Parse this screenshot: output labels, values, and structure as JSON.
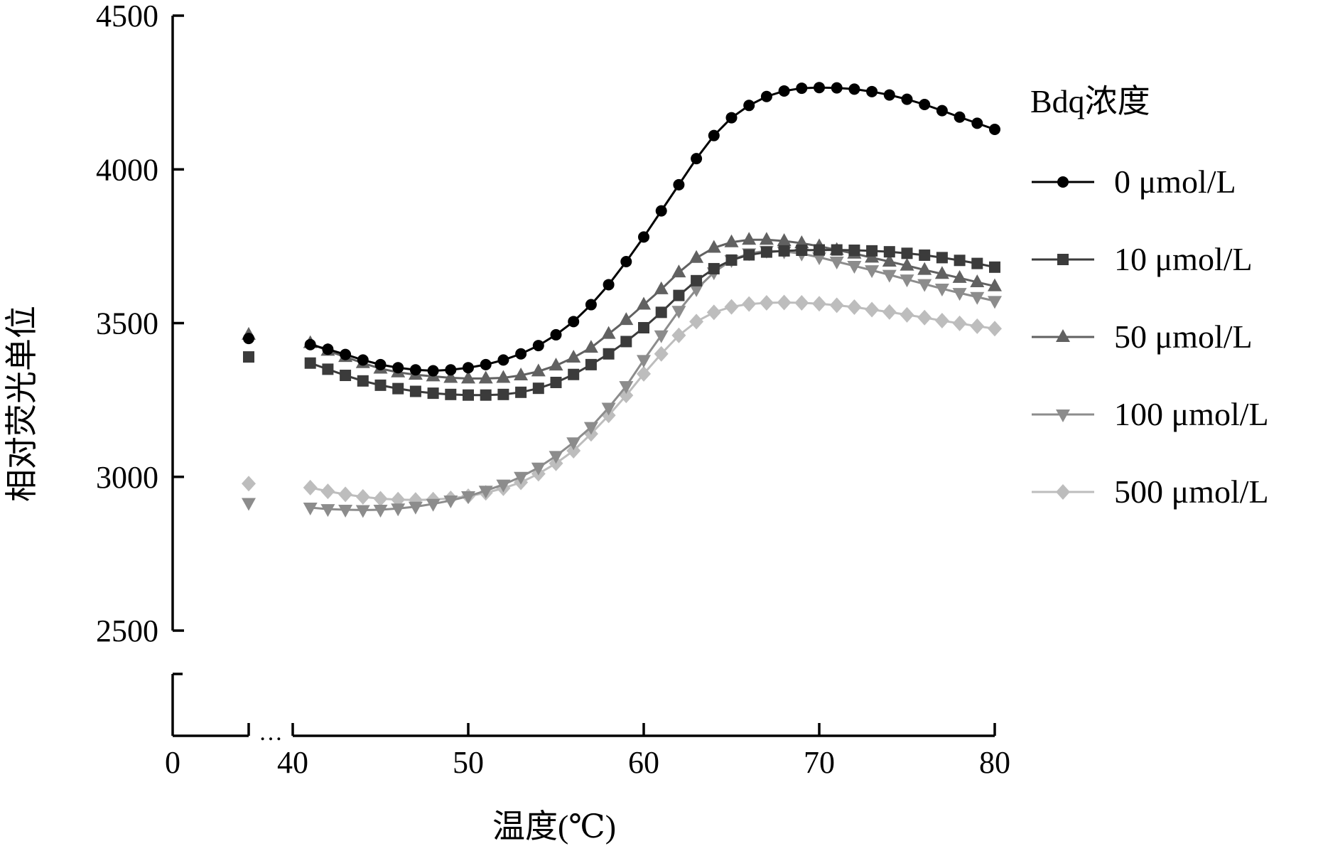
{
  "chart_data": {
    "type": "line",
    "xlabel": "温度(℃)",
    "ylabel": "相对荧光单位",
    "x_ticks": [
      "0",
      "40",
      "50",
      "60",
      "70",
      "80"
    ],
    "y_ticks": [
      "2500",
      "3000",
      "3500",
      "4000",
      "4500"
    ],
    "xlim": [
      41,
      80
    ],
    "ylim": [
      2500,
      4500
    ],
    "x_break_marker": "…",
    "legend": {
      "title": "Bdq浓度",
      "position": "right"
    },
    "series": [
      {
        "name": "0 μmol/L",
        "marker": "circle",
        "color": "#000000",
        "initial_value": 3450,
        "x": [
          41,
          42,
          43,
          44,
          45,
          46,
          47,
          48,
          49,
          50,
          51,
          52,
          53,
          54,
          55,
          56,
          57,
          58,
          59,
          60,
          61,
          62,
          63,
          64,
          65,
          66,
          67,
          68,
          69,
          70,
          71,
          72,
          73,
          74,
          75,
          76,
          77,
          78,
          79,
          80
        ],
        "values": [
          3430,
          3415,
          3398,
          3380,
          3365,
          3355,
          3348,
          3345,
          3348,
          3355,
          3365,
          3380,
          3400,
          3427,
          3462,
          3505,
          3560,
          3625,
          3700,
          3780,
          3865,
          3950,
          4035,
          4110,
          4168,
          4208,
          4237,
          4255,
          4264,
          4266,
          4265,
          4261,
          4253,
          4242,
          4228,
          4211,
          4191,
          4170,
          4150,
          4130
        ]
      },
      {
        "name": "10 μmol/L",
        "marker": "square",
        "color": "#3b3b3b",
        "initial_value": 3390,
        "x": [
          41,
          42,
          43,
          44,
          45,
          46,
          47,
          48,
          49,
          50,
          51,
          52,
          53,
          54,
          55,
          56,
          57,
          58,
          59,
          60,
          61,
          62,
          63,
          64,
          65,
          66,
          67,
          68,
          69,
          70,
          71,
          72,
          73,
          74,
          75,
          76,
          77,
          78,
          79,
          80
        ],
        "values": [
          3370,
          3350,
          3330,
          3312,
          3298,
          3287,
          3278,
          3272,
          3268,
          3266,
          3266,
          3268,
          3275,
          3288,
          3307,
          3333,
          3365,
          3400,
          3440,
          3485,
          3535,
          3590,
          3638,
          3677,
          3705,
          3722,
          3731,
          3735,
          3737,
          3738,
          3738,
          3737,
          3735,
          3732,
          3727,
          3721,
          3713,
          3704,
          3694,
          3682
        ]
      },
      {
        "name": "50 μmol/L",
        "marker": "triangle-up",
        "color": "#616161",
        "initial_value": 3462,
        "x": [
          41,
          42,
          43,
          44,
          45,
          46,
          47,
          48,
          49,
          50,
          51,
          52,
          53,
          54,
          55,
          56,
          57,
          58,
          59,
          60,
          61,
          62,
          63,
          64,
          65,
          66,
          67,
          68,
          69,
          70,
          71,
          72,
          73,
          74,
          75,
          76,
          77,
          78,
          79,
          80
        ],
        "values": [
          3435,
          3410,
          3390,
          3370,
          3352,
          3340,
          3332,
          3327,
          3322,
          3320,
          3320,
          3322,
          3330,
          3343,
          3362,
          3388,
          3420,
          3465,
          3510,
          3560,
          3610,
          3665,
          3712,
          3745,
          3763,
          3771,
          3771,
          3767,
          3760,
          3750,
          3738,
          3726,
          3713,
          3700,
          3687,
          3673,
          3660,
          3647,
          3633,
          3620
        ]
      },
      {
        "name": "100 μmol/L",
        "marker": "triangle-down",
        "color": "#8c8c8c",
        "initial_value": 2915,
        "x": [
          41,
          42,
          43,
          44,
          45,
          46,
          47,
          48,
          49,
          50,
          51,
          52,
          53,
          54,
          55,
          56,
          57,
          58,
          59,
          60,
          61,
          62,
          63,
          64,
          65,
          66,
          67,
          68,
          69,
          70,
          71,
          72,
          73,
          74,
          75,
          76,
          77,
          78,
          79,
          80
        ],
        "values": [
          2900,
          2895,
          2893,
          2892,
          2893,
          2897,
          2903,
          2912,
          2923,
          2937,
          2955,
          2975,
          3000,
          3030,
          3068,
          3112,
          3162,
          3225,
          3295,
          3380,
          3460,
          3540,
          3610,
          3665,
          3705,
          3727,
          3735,
          3733,
          3726,
          3714,
          3700,
          3686,
          3672,
          3657,
          3642,
          3627,
          3612,
          3598,
          3585,
          3572
        ]
      },
      {
        "name": "500 μmol/L",
        "marker": "diamond",
        "color": "#bdbdbd",
        "initial_value": 2978,
        "x": [
          41,
          42,
          43,
          44,
          45,
          46,
          47,
          48,
          49,
          50,
          51,
          52,
          53,
          54,
          55,
          56,
          57,
          58,
          59,
          60,
          61,
          62,
          63,
          64,
          65,
          66,
          67,
          68,
          69,
          70,
          71,
          72,
          73,
          74,
          75,
          76,
          77,
          78,
          79,
          80
        ],
        "values": [
          2965,
          2953,
          2943,
          2935,
          2929,
          2926,
          2925,
          2926,
          2930,
          2937,
          2948,
          2963,
          2982,
          3010,
          3044,
          3085,
          3140,
          3200,
          3265,
          3335,
          3400,
          3460,
          3505,
          3535,
          3553,
          3562,
          3566,
          3567,
          3566,
          3563,
          3558,
          3552,
          3544,
          3536,
          3527,
          3518,
          3508,
          3499,
          3490,
          3482
        ]
      }
    ]
  }
}
